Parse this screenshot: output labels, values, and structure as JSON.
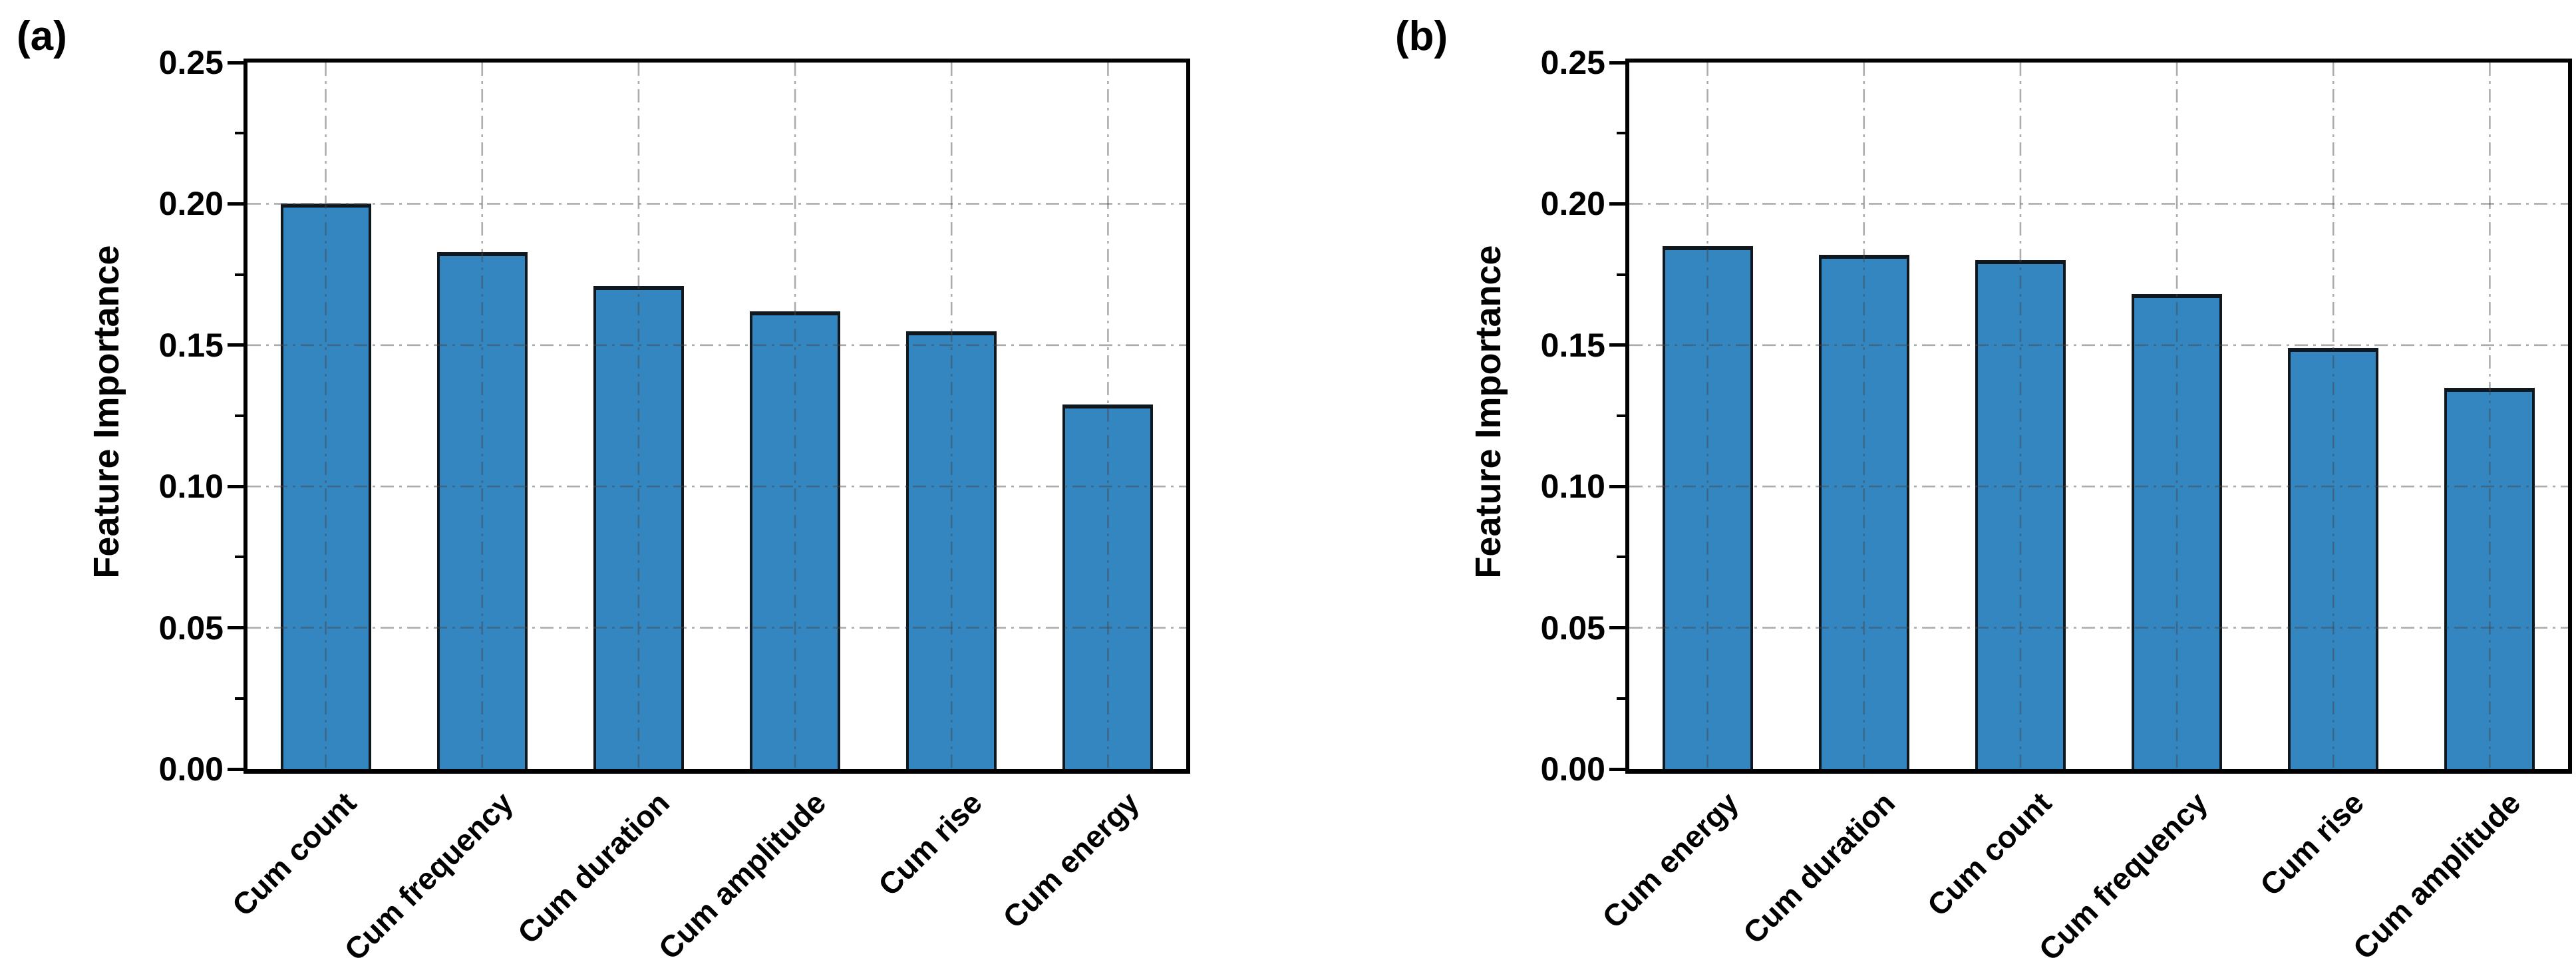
{
  "style": {
    "background": "#ffffff",
    "bar_fill": "#3486c1",
    "bar_edge": "#10181f",
    "axis_color": "#000000",
    "grid_color_rgba": "rgba(70,70,70,0.45)",
    "text_color": "#000000"
  },
  "chart_data": [
    {
      "type": "bar",
      "panel_label": "(a)",
      "title": "",
      "xlabel": "",
      "ylabel": "Feature Importance",
      "categories": [
        "Cum count",
        "Cum frequency",
        "Cum duration",
        "Cum amplitude",
        "Cum rise",
        "Cum energy"
      ],
      "values": [
        0.2,
        0.183,
        0.171,
        0.162,
        0.155,
        0.129
      ],
      "ylim": [
        0,
        0.25
      ],
      "yticks": [
        0.0,
        0.05,
        0.1,
        0.15,
        0.2,
        0.25
      ],
      "ytick_labels": [
        "0.00",
        "0.05",
        "0.10",
        "0.15",
        "0.20",
        "0.25"
      ],
      "yminor_ticks": [
        0.025,
        0.075,
        0.125,
        0.175,
        0.225
      ],
      "grid_levels": [
        0.05,
        0.1,
        0.15,
        0.2
      ],
      "grid": "both, dash-dot, drawn over bars",
      "legend": "none",
      "x_labels_rotation_deg": 45
    },
    {
      "type": "bar",
      "panel_label": "(b)",
      "title": "",
      "xlabel": "",
      "ylabel": "Feature Importance",
      "categories": [
        "Cum energy",
        "Cum duration",
        "Cum count",
        "Cum frequency",
        "Cum rise",
        "Cum amplitude"
      ],
      "values": [
        0.185,
        0.182,
        0.18,
        0.168,
        0.149,
        0.135
      ],
      "ylim": [
        0,
        0.25
      ],
      "yticks": [
        0.0,
        0.05,
        0.1,
        0.15,
        0.2,
        0.25
      ],
      "ytick_labels": [
        "0.00",
        "0.05",
        "0.10",
        "0.15",
        "0.20",
        "0.25"
      ],
      "yminor_ticks": [
        0.025,
        0.075,
        0.125,
        0.175,
        0.225
      ],
      "grid_levels": [
        0.05,
        0.1,
        0.15,
        0.2
      ],
      "grid": "both, dash-dot, drawn over bars",
      "legend": "none",
      "x_labels_rotation_deg": 45
    }
  ]
}
